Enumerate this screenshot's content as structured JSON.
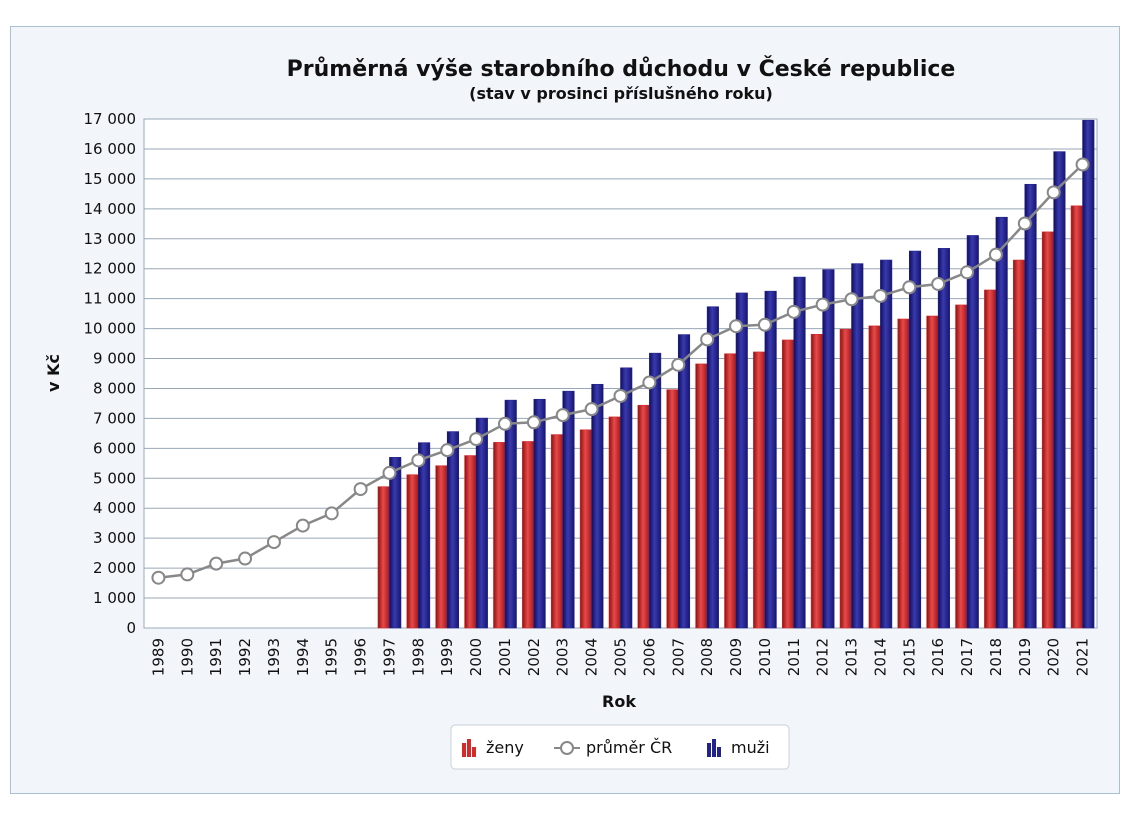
{
  "chart_data": {
    "type": "bar",
    "title": "Průměrná výše starobního důchodu v České republice",
    "subtitle": "(stav v prosinci příslušného roku)",
    "xlabel": "Rok",
    "ylabel": "v Kč",
    "ylim": [
      0,
      17000
    ],
    "yticks": [
      "0",
      "1 000",
      "2 000",
      "3 000",
      "4 000",
      "5 000",
      "6 000",
      "7 000",
      "8 000",
      "9 000",
      "10 000",
      "11 000",
      "12 000",
      "13 000",
      "14 000",
      "15 000",
      "16 000",
      "17 000"
    ],
    "categories": [
      "1989",
      "1990",
      "1991",
      "1992",
      "1993",
      "1994",
      "1995",
      "1996",
      "1997",
      "1998",
      "1999",
      "2000",
      "2001",
      "2002",
      "2003",
      "2004",
      "2005",
      "2006",
      "2007",
      "2008",
      "2009",
      "2010",
      "2011",
      "2012",
      "2013",
      "2014",
      "2015",
      "2016",
      "2017",
      "2018",
      "2019",
      "2020",
      "2021"
    ],
    "grid": true,
    "legend_position": "bottom-center",
    "series": [
      {
        "name": "ženy",
        "kind": "bar",
        "color": "#d42a2a",
        "values": [
          null,
          null,
          null,
          null,
          null,
          null,
          null,
          null,
          4720,
          5120,
          5420,
          5760,
          6200,
          6230,
          6460,
          6620,
          7050,
          7440,
          7960,
          8820,
          9160,
          9220,
          9620,
          9810,
          9980,
          10090,
          10320,
          10420,
          10790,
          11290,
          12290,
          13230,
          14100
        ]
      },
      {
        "name": "průměr ČR",
        "kind": "line",
        "color": "#888888",
        "values": [
          1680,
          1790,
          2150,
          2320,
          2870,
          3420,
          3830,
          4640,
          5180,
          5600,
          5940,
          6310,
          6820,
          6870,
          7110,
          7310,
          7750,
          8200,
          8790,
          9640,
          10080,
          10130,
          10560,
          10800,
          10980,
          11090,
          11380,
          11490,
          11880,
          12470,
          13510,
          14550,
          15480
        ]
      },
      {
        "name": "muži",
        "kind": "bar",
        "color": "#22228c",
        "values": [
          null,
          null,
          null,
          null,
          null,
          null,
          null,
          null,
          5700,
          6190,
          6560,
          7010,
          7610,
          7640,
          7910,
          8140,
          8690,
          9180,
          9800,
          10730,
          11190,
          11250,
          11720,
          11970,
          12170,
          12290,
          12590,
          12680,
          13110,
          13720,
          14820,
          15910,
          16960
        ]
      }
    ]
  }
}
